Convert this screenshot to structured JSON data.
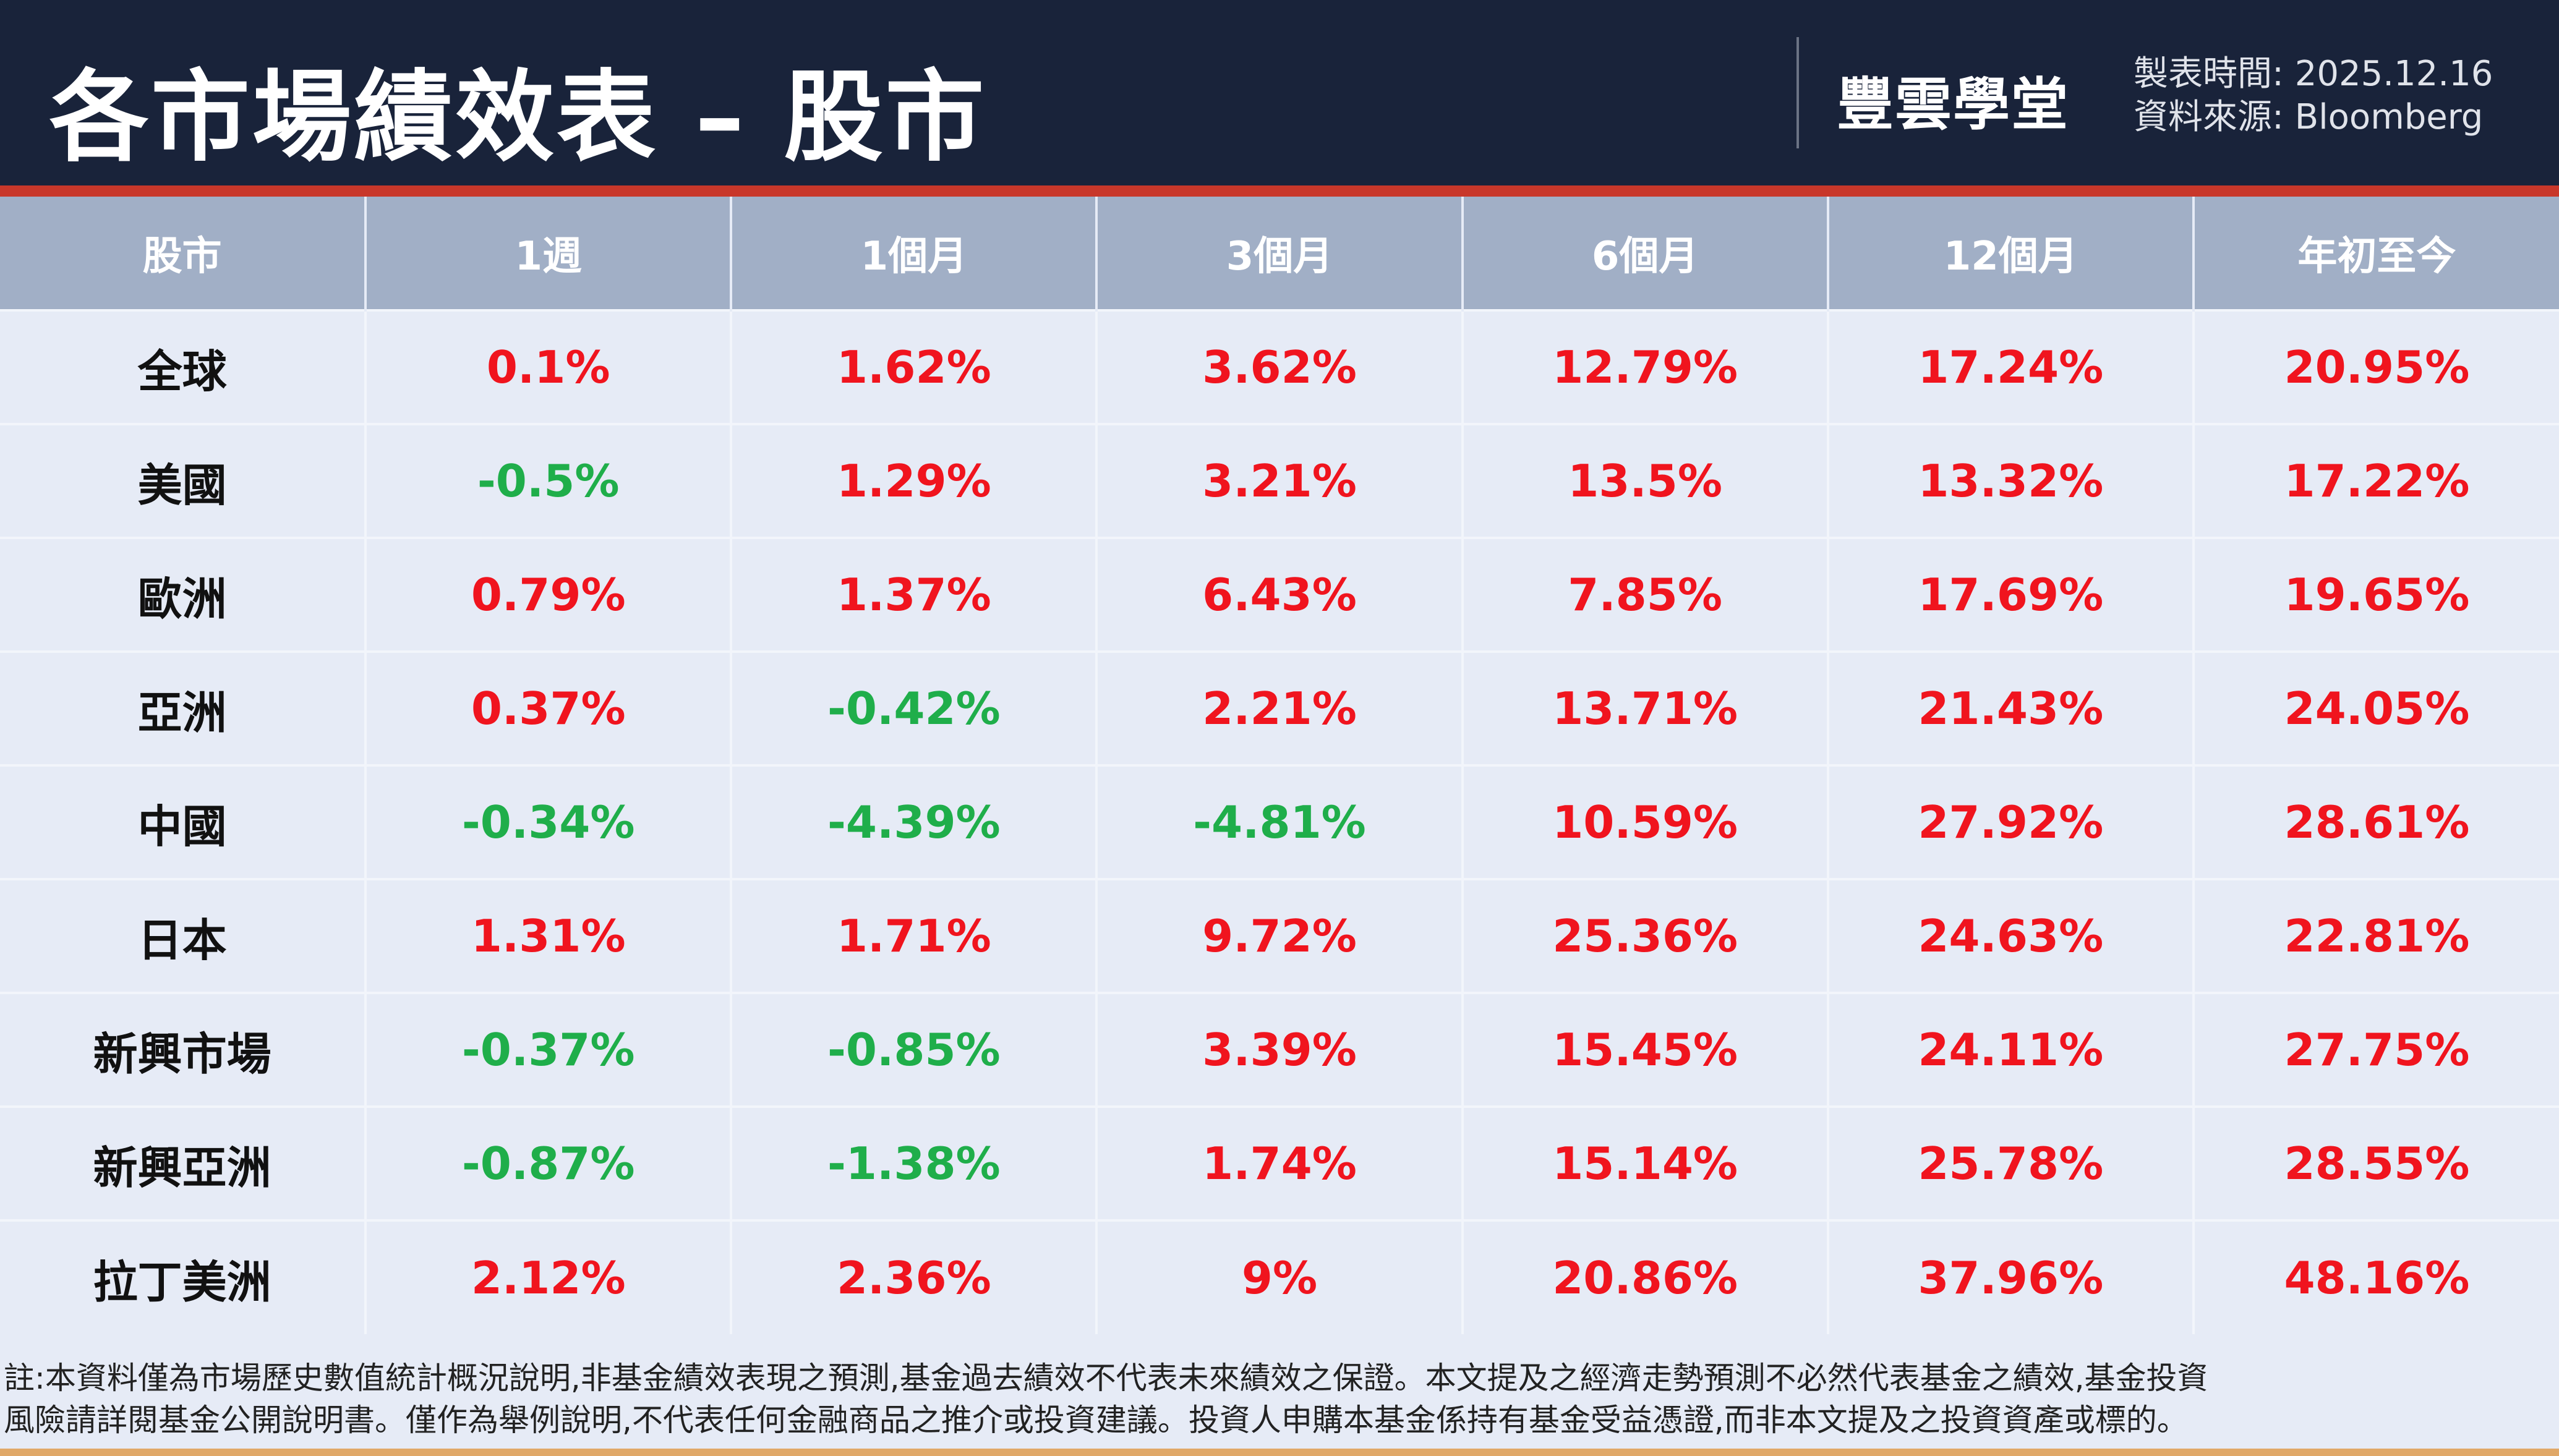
{
  "header": {
    "title": "各市場績效表 – 股市",
    "logo": "豐雲學堂",
    "date_label": "製表時間:",
    "date": "2025.12.16",
    "source_label": "資料來源:",
    "source": "Bloomberg"
  },
  "colors": {
    "positive": "#f0141e",
    "negative": "#1fae4a",
    "header_bg": "#19233a"
  },
  "table": {
    "columns": [
      "股市",
      "1週",
      "1個月",
      "3個月",
      "6個月",
      "12個月",
      "年初至今"
    ],
    "rows": [
      {
        "market": "全球",
        "values": [
          "0.1%",
          "1.62%",
          "3.62%",
          "12.79%",
          "17.24%",
          "20.95%"
        ]
      },
      {
        "market": "美國",
        "values": [
          "-0.5%",
          "1.29%",
          "3.21%",
          "13.5%",
          "13.32%",
          "17.22%"
        ]
      },
      {
        "market": "歐洲",
        "values": [
          "0.79%",
          "1.37%",
          "6.43%",
          "7.85%",
          "17.69%",
          "19.65%"
        ]
      },
      {
        "market": "亞洲",
        "values": [
          "0.37%",
          "-0.42%",
          "2.21%",
          "13.71%",
          "21.43%",
          "24.05%"
        ]
      },
      {
        "market": "中國",
        "values": [
          "-0.34%",
          "-4.39%",
          "-4.81%",
          "10.59%",
          "27.92%",
          "28.61%"
        ]
      },
      {
        "market": "日本",
        "values": [
          "1.31%",
          "1.71%",
          "9.72%",
          "25.36%",
          "24.63%",
          "22.81%"
        ]
      },
      {
        "market": "新興市場",
        "values": [
          "-0.37%",
          "-0.85%",
          "3.39%",
          "15.45%",
          "24.11%",
          "27.75%"
        ]
      },
      {
        "market": "新興亞洲",
        "values": [
          "-0.87%",
          "-1.38%",
          "1.74%",
          "15.14%",
          "25.78%",
          "28.55%"
        ]
      },
      {
        "market": "拉丁美洲",
        "values": [
          "2.12%",
          "2.36%",
          "9%",
          "20.86%",
          "37.96%",
          "48.16%"
        ]
      }
    ]
  },
  "footer": {
    "line1": "註:本資料僅為市場歷史數值統計概況說明,非基金績效表現之預測,基金過去績效不代表未來績效之保證。本文提及之經濟走勢預測不必然代表基金之績效,基金投資",
    "line2": "風險請詳閱基金公開說明書。僅作為舉例說明,不代表任何金融商品之推介或投資建議。投資人申購本基金係持有基金受益憑證,而非本文提及之投資資產或標的。"
  }
}
